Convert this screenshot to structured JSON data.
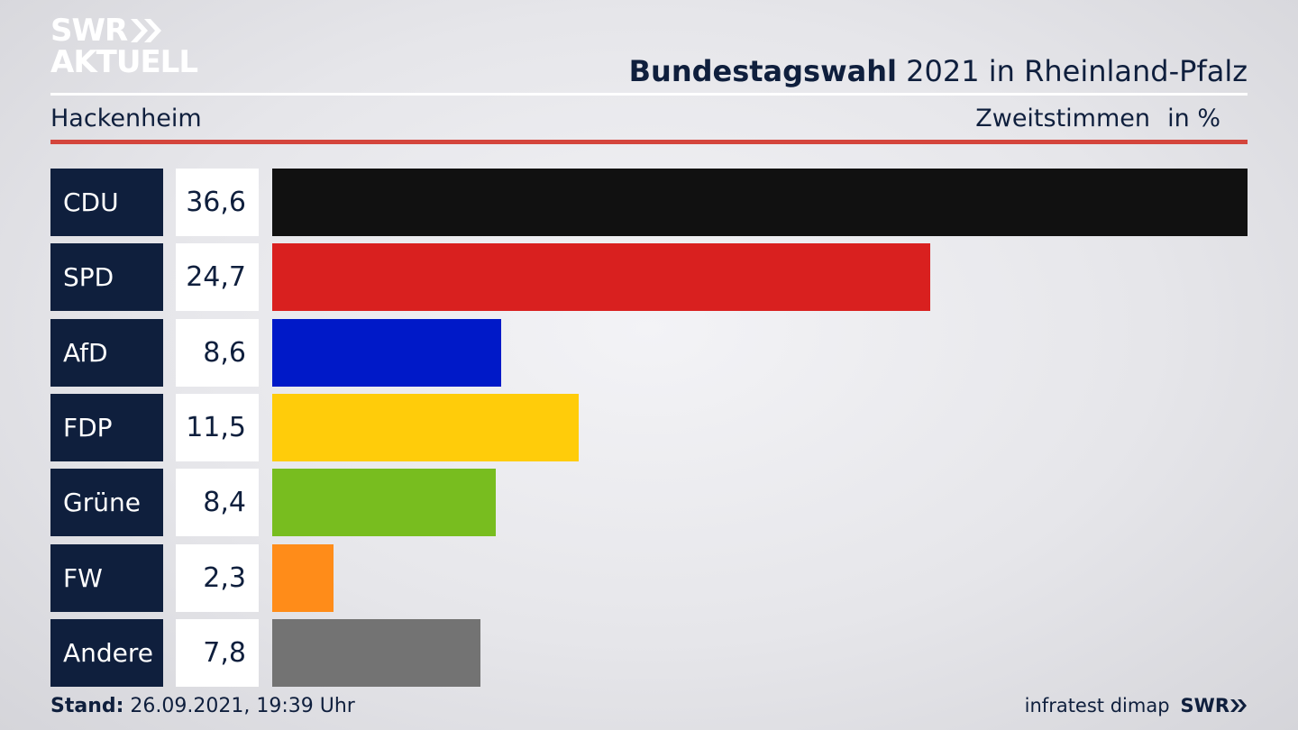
{
  "logo": {
    "top": "SWR",
    "bottom": "AKTUELL"
  },
  "header": {
    "title_bold": "Bundestagswahl",
    "title_rest": " 2021 in Rheinland-Pfalz",
    "place": "Hackenheim",
    "metric": "Zweitstimmen",
    "unit": "in %"
  },
  "chart_data": {
    "type": "bar",
    "orientation": "horizontal",
    "categories": [
      "CDU",
      "SPD",
      "AfD",
      "FDP",
      "Grüne",
      "FW",
      "Andere"
    ],
    "values": [
      36.6,
      24.7,
      8.6,
      11.5,
      8.4,
      2.3,
      7.8
    ],
    "value_labels": [
      "36,6",
      "24,7",
      "8,6",
      "11,5",
      "8,4",
      "2,3",
      "7,8"
    ],
    "colors": [
      "#111111",
      "#d9201f",
      "#0019c8",
      "#ffcc0a",
      "#78bd1f",
      "#ff8c19",
      "#737373"
    ],
    "xlim": [
      0,
      36.6
    ]
  },
  "footer": {
    "stand_label": "Stand:",
    "stand_value": " 26.09.2021, 19:39 Uhr",
    "source": "infratest dimap",
    "brand": "SWR"
  }
}
